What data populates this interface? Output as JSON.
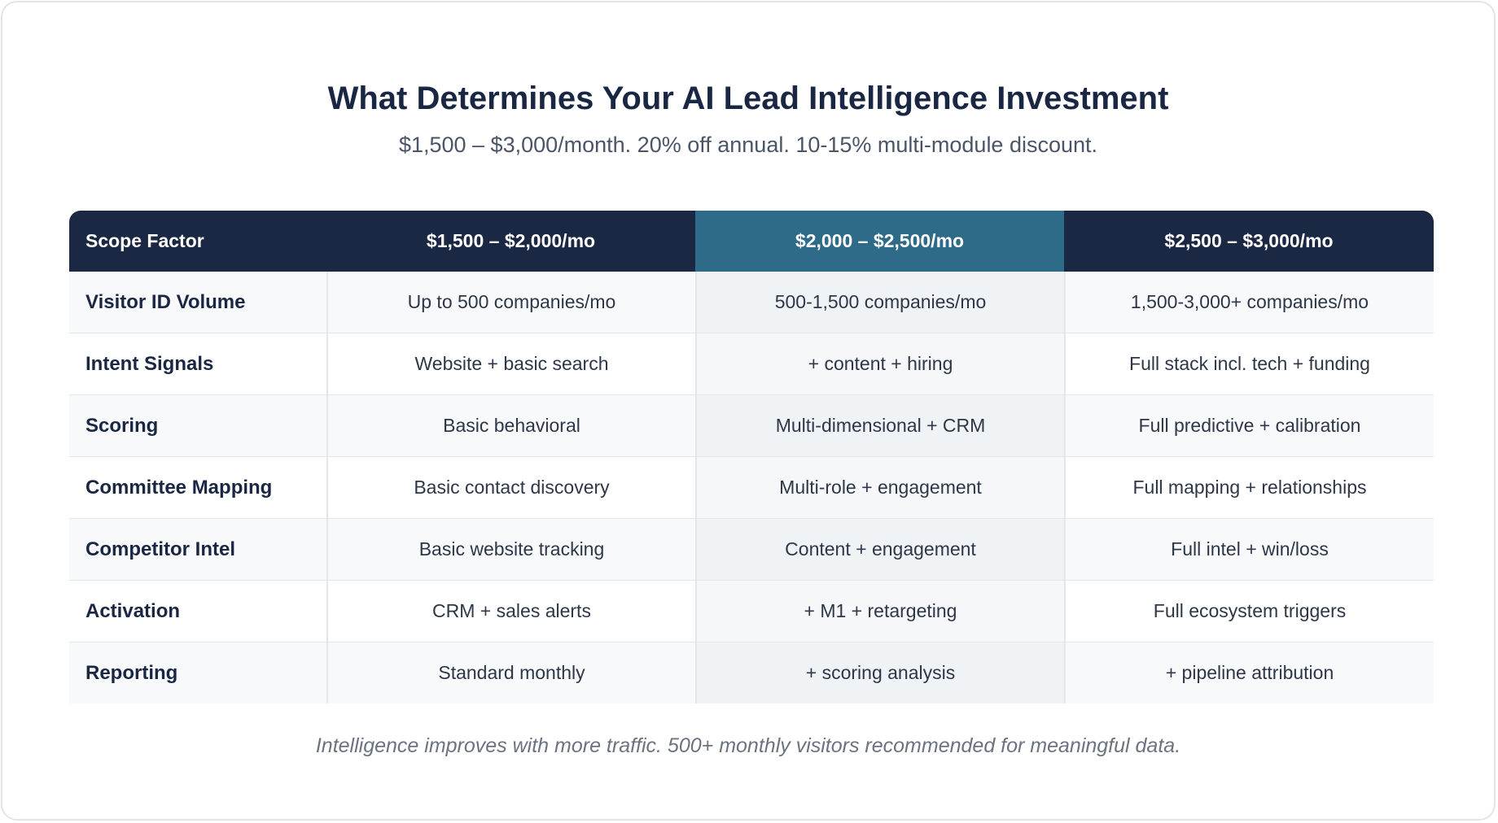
{
  "header": {
    "title": "What Determines Your AI Lead Intelligence Investment",
    "subtitle": "$1,500 – $3,000/month. 20% off annual. 10-15% multi-module discount."
  },
  "table": {
    "columns": [
      "Scope Factor",
      "$1,500 – $2,000/mo",
      "$2,000 – $2,500/mo",
      "$2,500 – $3,000/mo"
    ],
    "rows": [
      [
        "Visitor ID Volume",
        "Up to 500 companies/mo",
        "500-1,500 companies/mo",
        "1,500-3,000+ companies/mo"
      ],
      [
        "Intent Signals",
        "Website + basic search",
        "+ content + hiring",
        "Full stack incl. tech + funding"
      ],
      [
        "Scoring",
        "Basic behavioral",
        "Multi-dimensional + CRM",
        "Full predictive + calibration"
      ],
      [
        "Committee Mapping",
        "Basic contact discovery",
        "Multi-role + engagement",
        "Full mapping + relationships"
      ],
      [
        "Competitor Intel",
        "Basic website tracking",
        "Content + engagement",
        "Full intel + win/loss"
      ],
      [
        "Activation",
        "CRM + sales alerts",
        "+ M1 + retargeting",
        "Full ecosystem triggers"
      ],
      [
        "Reporting",
        "Standard monthly",
        "+ scoring analysis",
        "+ pipeline attribution"
      ]
    ]
  },
  "footnote": "Intelligence improves with more traffic. 500+ monthly visitors recommended for meaningful data.",
  "colors": {
    "header_dark": "#1b2844",
    "header_accent": "#2e6b88",
    "title_text": "#1a2744"
  }
}
